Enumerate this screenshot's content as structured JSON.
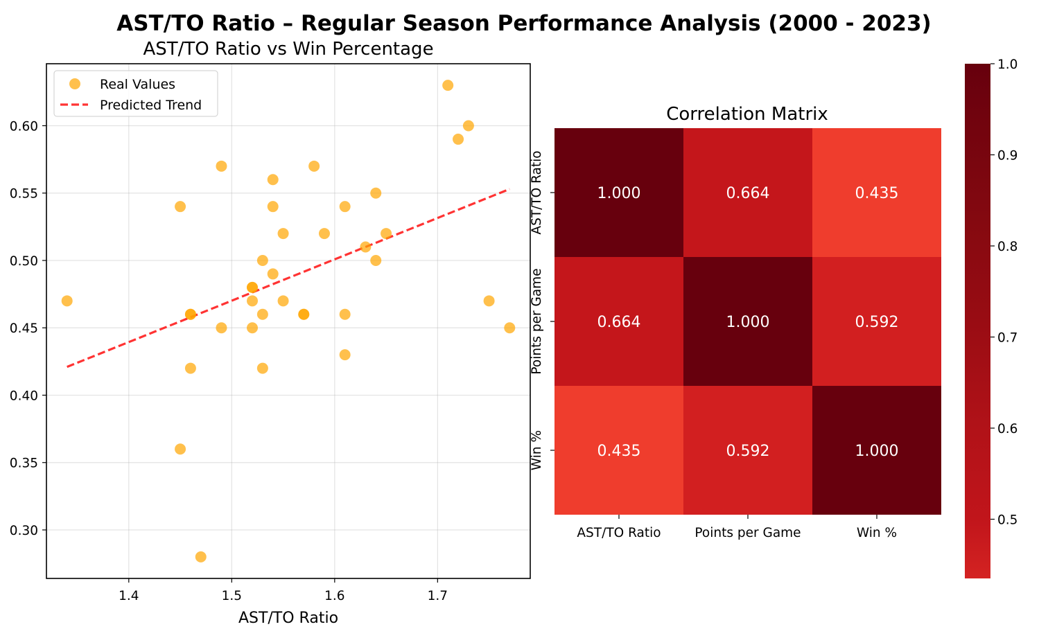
{
  "figure": {
    "suptitle": "AST/TO Ratio – Regular Season Performance Analysis (2000 - 2023)"
  },
  "chart_data": [
    {
      "type": "scatter",
      "title": "AST/TO Ratio vs Win Percentage",
      "xlabel": "AST/TO Ratio",
      "ylabel": "",
      "xlim": [
        1.32,
        1.79
      ],
      "ylim": [
        0.264,
        0.646
      ],
      "xticks": [
        1.4,
        1.5,
        1.6,
        1.7
      ],
      "xtick_labels": [
        "1.4",
        "1.5",
        "1.6",
        "1.7"
      ],
      "yticks": [
        0.3,
        0.35,
        0.4,
        0.45,
        0.5,
        0.55,
        0.6
      ],
      "ytick_labels": [
        "0.30",
        "0.35",
        "0.40",
        "0.45",
        "0.50",
        "0.55",
        "0.60"
      ],
      "grid": true,
      "legend_position": "upper-left",
      "series": [
        {
          "name": "Real Values",
          "kind": "points",
          "color": "#FFA500",
          "points": [
            [
              1.34,
              0.47
            ],
            [
              1.45,
              0.54
            ],
            [
              1.45,
              0.36
            ],
            [
              1.46,
              0.46
            ],
            [
              1.46,
              0.46
            ],
            [
              1.46,
              0.42
            ],
            [
              1.47,
              0.28
            ],
            [
              1.49,
              0.57
            ],
            [
              1.49,
              0.45
            ],
            [
              1.52,
              0.48
            ],
            [
              1.52,
              0.48
            ],
            [
              1.52,
              0.47
            ],
            [
              1.52,
              0.45
            ],
            [
              1.53,
              0.5
            ],
            [
              1.53,
              0.46
            ],
            [
              1.53,
              0.42
            ],
            [
              1.54,
              0.56
            ],
            [
              1.54,
              0.54
            ],
            [
              1.54,
              0.49
            ],
            [
              1.55,
              0.52
            ],
            [
              1.55,
              0.47
            ],
            [
              1.57,
              0.46
            ],
            [
              1.57,
              0.46
            ],
            [
              1.58,
              0.57
            ],
            [
              1.59,
              0.52
            ],
            [
              1.61,
              0.54
            ],
            [
              1.61,
              0.46
            ],
            [
              1.61,
              0.43
            ],
            [
              1.63,
              0.51
            ],
            [
              1.64,
              0.55
            ],
            [
              1.64,
              0.5
            ],
            [
              1.65,
              0.52
            ],
            [
              1.71,
              0.63
            ],
            [
              1.72,
              0.59
            ],
            [
              1.73,
              0.6
            ],
            [
              1.75,
              0.47
            ],
            [
              1.77,
              0.45
            ]
          ]
        },
        {
          "name": "Predicted Trend",
          "kind": "line",
          "color": "#FF0000",
          "dash": "dashed",
          "x": [
            1.34,
            1.77
          ],
          "y": [
            0.421,
            0.553
          ]
        }
      ]
    },
    {
      "type": "heatmap",
      "title": "Correlation Matrix",
      "row_labels": [
        "AST/TO Ratio",
        "Points per Game",
        "Win %"
      ],
      "col_labels": [
        "AST/TO Ratio",
        "Points per Game",
        "Win %"
      ],
      "values": [
        [
          1.0,
          0.664,
          0.435
        ],
        [
          0.664,
          1.0,
          0.592
        ],
        [
          0.435,
          0.592,
          1.0
        ]
      ],
      "value_labels": [
        [
          "1.000",
          "0.664",
          "0.435"
        ],
        [
          "0.664",
          "1.000",
          "0.592"
        ],
        [
          "0.435",
          "0.592",
          "1.000"
        ]
      ],
      "colormap": "Reds",
      "colorbar": {
        "min": 0.435,
        "max": 1.0,
        "ticks": [
          0.5,
          0.6,
          0.7,
          0.8,
          0.9,
          1.0
        ],
        "tick_labels": [
          "0.5",
          "0.6",
          "0.7",
          "0.8",
          "0.9",
          "1.0"
        ]
      }
    }
  ]
}
